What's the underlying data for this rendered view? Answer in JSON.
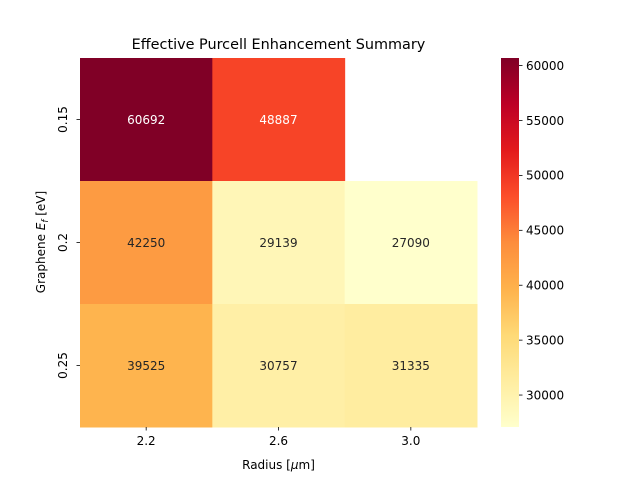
{
  "chart_data": {
    "type": "heatmap",
    "title": "Effective Purcell Enhancement Summary",
    "xlabel_prefix": "Radius [",
    "xlabel_symbol": "μ",
    "xlabel_suffix": "m]",
    "ylabel_prefix": "Graphene ",
    "ylabel_symbol": "E",
    "ylabel_subscript": "f",
    "ylabel_suffix": " [eV]",
    "x_categories": [
      "2.2",
      "2.6",
      "3.0"
    ],
    "y_categories": [
      "0.15",
      "0.2",
      "0.25"
    ],
    "values": [
      [
        60692,
        48887,
        null
      ],
      [
        42250,
        29139,
        27090
      ],
      [
        39525,
        30757,
        31335
      ]
    ],
    "value_labels": [
      [
        "60692",
        "48887",
        ""
      ],
      [
        "42250",
        "29139",
        "27090"
      ],
      [
        "39525",
        "30757",
        "31335"
      ]
    ],
    "colormap": "YlOrRd",
    "colorbar": {
      "vmin": 27090,
      "vmax": 60692,
      "ticks": [
        30000,
        35000,
        40000,
        45000,
        50000,
        55000,
        60000
      ],
      "tick_labels": [
        "30000",
        "35000",
        "40000",
        "45000",
        "50000",
        "55000",
        "60000"
      ]
    },
    "grid": false,
    "legend": "colorbar-right"
  }
}
